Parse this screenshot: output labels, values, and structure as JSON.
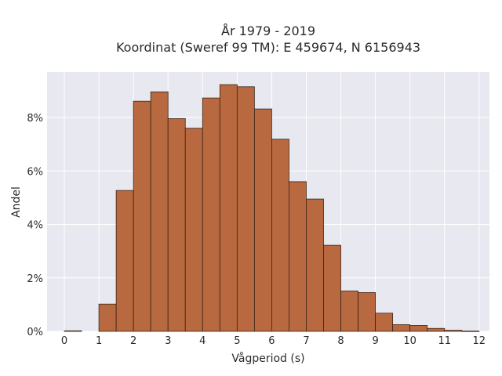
{
  "chart_data": {
    "type": "bar",
    "title_line1": "År 1979 - 2019",
    "title_line2": "Koordinat (Sweref 99 TM): E 459674, N 6156943",
    "xlabel": "Vågperiod (s)",
    "ylabel": "Andel",
    "bin_width": 0.5,
    "x_bin_starts": [
      0,
      0.5,
      1,
      1.5,
      2,
      2.5,
      3,
      3.5,
      4,
      4.5,
      5,
      5.5,
      6,
      6.5,
      7,
      7.5,
      8,
      8.5,
      9,
      9.5,
      10,
      10.5,
      11,
      11.5
    ],
    "values": [
      0.0002,
      0,
      0.0102,
      0.0527,
      0.0861,
      0.0896,
      0.0796,
      0.076,
      0.0873,
      0.0923,
      0.0915,
      0.0832,
      0.0719,
      0.056,
      0.0495,
      0.0322,
      0.0151,
      0.0145,
      0.0068,
      0.0025,
      0.0022,
      0.0011,
      0.0004,
      0.0001
    ],
    "xlim": [
      -0.5,
      12.3
    ],
    "ylim": [
      0,
      0.097
    ],
    "x_ticks": [
      0,
      1,
      2,
      3,
      4,
      5,
      6,
      7,
      8,
      9,
      10,
      11,
      12
    ],
    "x_tick_labels": [
      "0",
      "1",
      "2",
      "3",
      "4",
      "5",
      "6",
      "7",
      "8",
      "9",
      "10",
      "11",
      "12"
    ],
    "y_ticks": [
      0,
      0.02,
      0.04,
      0.06,
      0.08
    ],
    "y_tick_labels": [
      "0%",
      "2%",
      "4%",
      "6%",
      "8%"
    ],
    "grid": true,
    "colors": {
      "bar_fill": "#b8693f",
      "bar_stroke": "#3a2418",
      "plot_background": "#e8e8f0",
      "grid": "#ffffff"
    }
  }
}
